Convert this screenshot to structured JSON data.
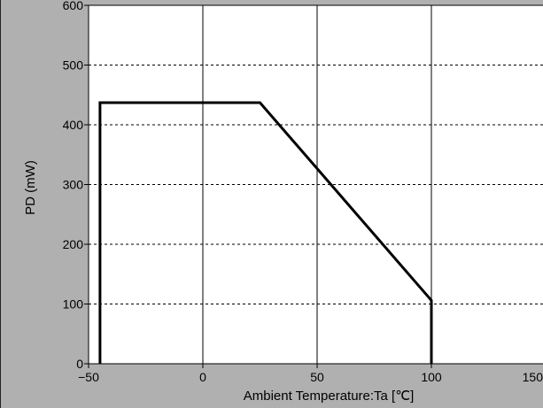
{
  "chart_data": {
    "type": "line",
    "xlabel": "Ambient Temperature:Ta [℃]",
    "ylabel": "PD (mW)",
    "xlim": [
      -50,
      150
    ],
    "ylim": [
      0,
      600
    ],
    "x_ticks": [
      "−50",
      "0",
      "50",
      "100",
      "150"
    ],
    "y_ticks": [
      "0",
      "100",
      "200",
      "300",
      "400",
      "500",
      "600"
    ],
    "grid": {
      "vertical": "solid",
      "horizontal": "dashed"
    },
    "series": [
      {
        "x": [
          -45,
          -45,
          25,
          100,
          100
        ],
        "y": [
          0,
          437,
          437,
          106,
          0
        ],
        "color": "#000000"
      }
    ]
  }
}
